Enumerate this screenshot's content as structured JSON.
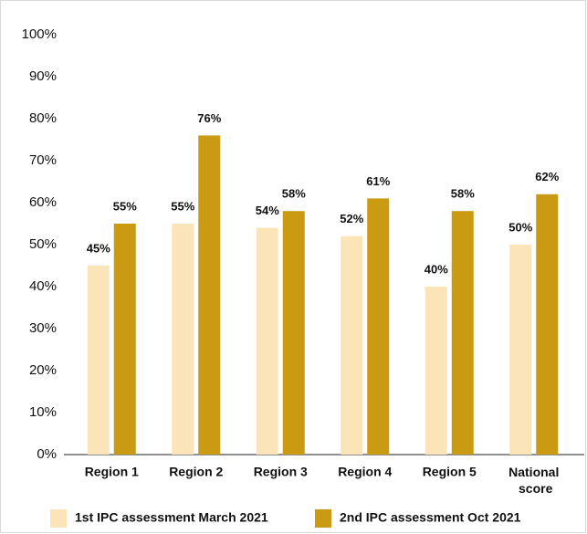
{
  "chart_data": {
    "type": "bar",
    "categories": [
      "Region 1",
      "Region 2",
      "Region 3",
      "Region 4",
      "Region 5",
      "National score"
    ],
    "series": [
      {
        "name": "1st IPC assessment March 2021",
        "color": "#fbe5b8",
        "values": [
          45,
          55,
          54,
          52,
          40,
          50
        ],
        "value_labels": [
          "45%",
          "55%",
          "54%",
          "52%",
          "40%",
          "50%"
        ]
      },
      {
        "name": "2nd IPC assessment Oct 2021",
        "color": "#c99a12",
        "values": [
          55,
          76,
          58,
          61,
          58,
          62
        ],
        "value_labels": [
          "55%",
          "76%",
          "58%",
          "61%",
          "58%",
          "62%"
        ]
      }
    ],
    "ylim": [
      0,
      100
    ],
    "yticks": [
      {
        "value": 0,
        "label": "0%"
      },
      {
        "value": 10,
        "label": "10%"
      },
      {
        "value": 20,
        "label": "20%"
      },
      {
        "value": 30,
        "label": "30%"
      },
      {
        "value": 40,
        "label": "40%"
      },
      {
        "value": 50,
        "label": "50%"
      },
      {
        "value": 60,
        "label": "60%"
      },
      {
        "value": 70,
        "label": "70%"
      },
      {
        "value": 80,
        "label": "80%"
      },
      {
        "value": 90,
        "label": "90%"
      },
      {
        "value": 100,
        "label": "100%"
      }
    ],
    "legend": "bottom"
  }
}
